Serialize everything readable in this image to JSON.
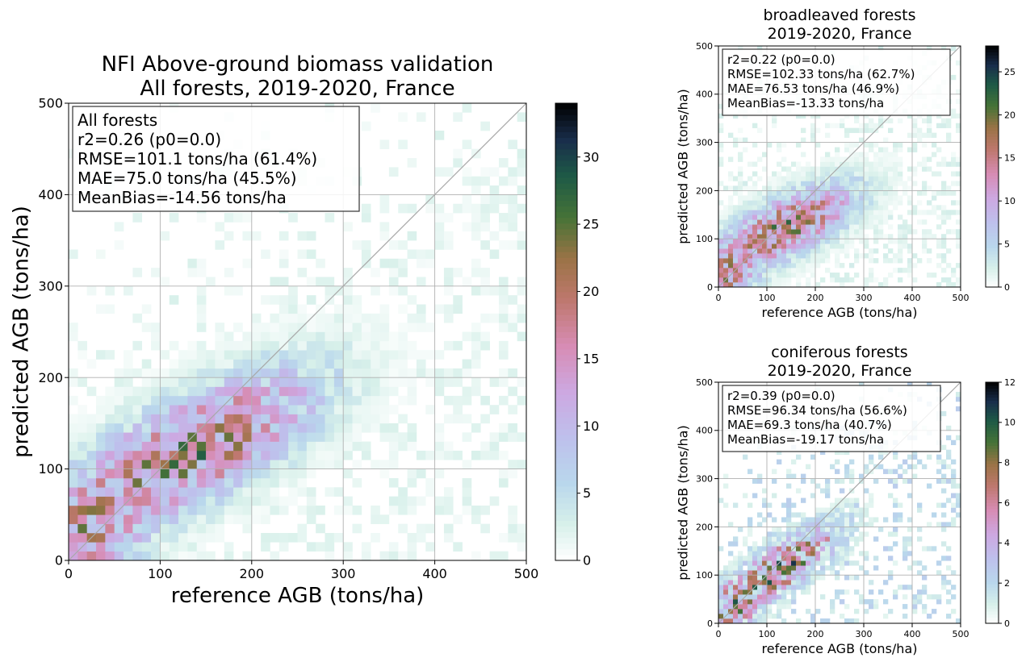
{
  "chart_data": [
    {
      "id": "all",
      "type": "heatmap",
      "title": [
        "NFI Above-ground biomass validation",
        "All forests, 2019-2020, France"
      ],
      "xlabel": "reference AGB (tons/ha)",
      "ylabel": "predicted AGB (tons/ha)",
      "xlim": [
        0,
        500
      ],
      "ylim": [
        0,
        500
      ],
      "xticks": [
        "0",
        "100",
        "200",
        "300",
        "400",
        "500"
      ],
      "yticks": [
        "0",
        "100",
        "200",
        "300",
        "400",
        "500"
      ],
      "grid": true,
      "identity_line": true,
      "bins": 50,
      "colormap": "cubehelix_r",
      "colorbar_range": [
        0,
        34
      ],
      "colorbar_ticks": [
        "0",
        "5",
        "10",
        "15",
        "20",
        "25",
        "30"
      ],
      "stats_box": [
        "All forests",
        "r2=0.26 (p0=0.0)",
        "RMSE=101.1 tons/ha (61.4%)",
        "MAE=75.0 tons/ha (45.5%)",
        "MeanBias=-14.56 tons/ha"
      ],
      "density": {
        "center_x": 135,
        "center_y": 120,
        "slope": 0.45,
        "spread_x": 95,
        "spread_y": 42,
        "peak": 34,
        "noise": 0.55,
        "background": 0.4,
        "seed": 11
      }
    },
    {
      "id": "broadleaved",
      "type": "heatmap",
      "title": [
        "broadleaved forests",
        "2019-2020, France"
      ],
      "xlabel": "reference AGB (tons/ha)",
      "ylabel": "predicted AGB (tons/ha)",
      "xlim": [
        0,
        500
      ],
      "ylim": [
        0,
        500
      ],
      "xticks": [
        "0",
        "100",
        "200",
        "300",
        "400",
        "500"
      ],
      "yticks": [
        "0",
        "100",
        "200",
        "300",
        "400",
        "500"
      ],
      "grid": true,
      "identity_line": true,
      "bins": 50,
      "colormap": "cubehelix_r",
      "colorbar_range": [
        0,
        28
      ],
      "colorbar_ticks": [
        "0",
        "5",
        "10",
        "15",
        "20",
        "25"
      ],
      "stats_box": [
        "r2=0.22 (p0=0.0)",
        "RMSE=102.33 tons/ha (62.7%)",
        "MAE=76.53 tons/ha (46.9%)",
        "MeanBias=-13.33 tons/ha"
      ],
      "density": {
        "center_x": 140,
        "center_y": 125,
        "slope": 0.42,
        "spread_x": 100,
        "spread_y": 45,
        "peak": 28,
        "noise": 0.55,
        "background": 0.4,
        "seed": 23
      }
    },
    {
      "id": "coniferous",
      "type": "heatmap",
      "title": [
        "coniferous forests",
        "2019-2020, France"
      ],
      "xlabel": "reference AGB (tons/ha)",
      "ylabel": "predicted AGB (tons/ha)",
      "xlim": [
        0,
        500
      ],
      "ylim": [
        0,
        500
      ],
      "xticks": [
        "0",
        "100",
        "200",
        "300",
        "400",
        "500"
      ],
      "yticks": [
        "0",
        "100",
        "200",
        "300",
        "400",
        "500"
      ],
      "grid": true,
      "identity_line": true,
      "bins": 50,
      "colormap": "cubehelix_r",
      "colorbar_range": [
        0,
        12
      ],
      "colorbar_ticks": [
        "0",
        "2",
        "4",
        "6",
        "8",
        "10",
        "12"
      ],
      "stats_box": [
        "r2=0.39 (p0=0.0)",
        "RMSE=96.34 tons/ha (56.6%)",
        "MAE=69.3 tons/ha (40.7%)",
        "MeanBias=-19.17 tons/ha"
      ],
      "density": {
        "center_x": 130,
        "center_y": 115,
        "slope": 0.6,
        "spread_x": 85,
        "spread_y": 38,
        "peak": 12,
        "noise": 0.8,
        "background": 0.25,
        "seed": 37
      }
    }
  ]
}
